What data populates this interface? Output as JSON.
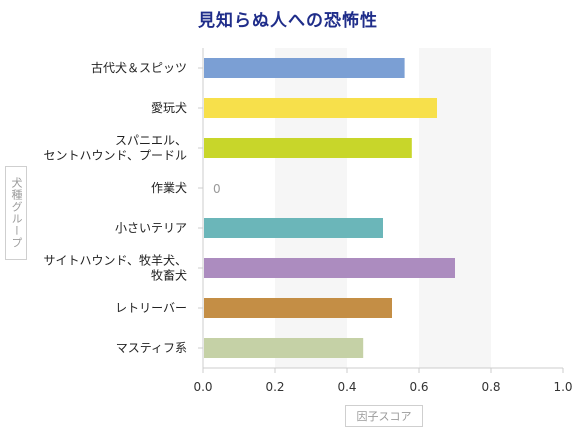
{
  "chart_data": {
    "type": "bar",
    "orientation": "horizontal",
    "title": "見知らぬ人への恐怖性",
    "ylabel": "犬種グループ",
    "xlabel": "因子スコア",
    "xlim": [
      0.0,
      1.0
    ],
    "xticks": [
      "0.0",
      "0.2",
      "0.4",
      "0.6",
      "0.8",
      "1.0"
    ],
    "grid": "alternating vertical bands",
    "categories": [
      {
        "label": [
          "古代犬＆スピッツ"
        ],
        "value": 0.56,
        "color": "#7b9fd4"
      },
      {
        "label": [
          "愛玩犬"
        ],
        "value": 0.65,
        "color": "#f7e04b"
      },
      {
        "label": [
          "スパニエル、",
          "セントハウンド、プードル"
        ],
        "value": 0.58,
        "color": "#c8d62a"
      },
      {
        "label": [
          "作業犬"
        ],
        "value": 0,
        "color": "#999999",
        "value_label": "0"
      },
      {
        "label": [
          "小さいテリア"
        ],
        "value": 0.5,
        "color": "#6bb6b9"
      },
      {
        "label": [
          "サイトハウンド、牧羊犬、",
          "牧畜犬"
        ],
        "value": 0.7,
        "color": "#ac8cbf"
      },
      {
        "label": [
          "レトリーバー"
        ],
        "value": 0.525,
        "color": "#c48e45"
      },
      {
        "label": [
          "マスティフ系"
        ],
        "value": 0.445,
        "color": "#c5d1a6"
      }
    ]
  }
}
